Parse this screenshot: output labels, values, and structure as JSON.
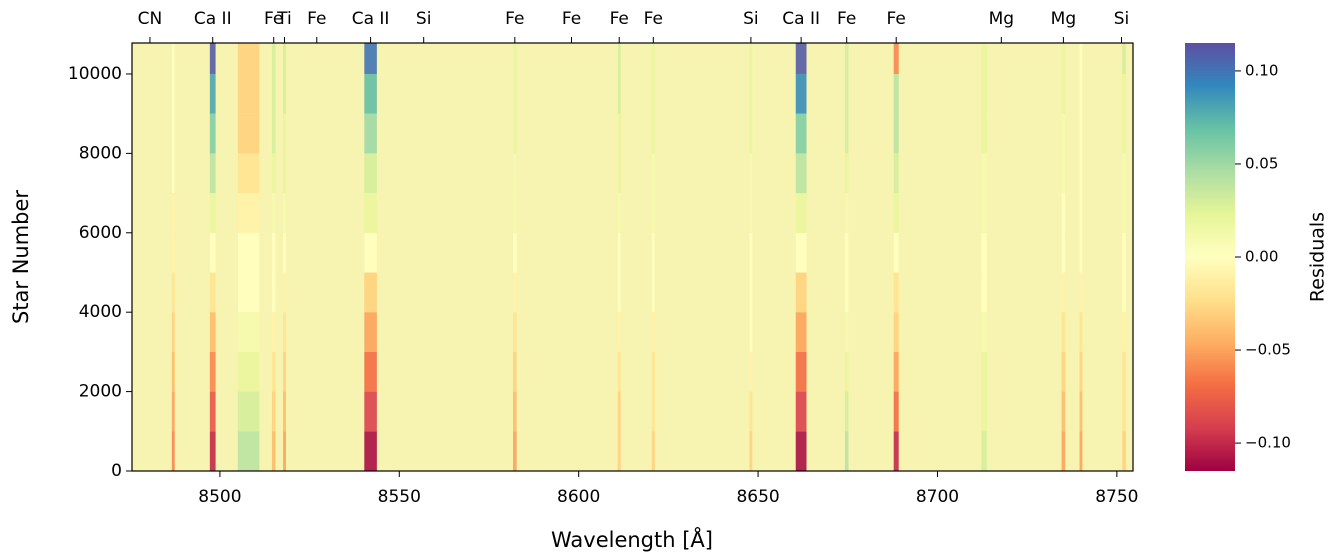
{
  "chart_data": {
    "type": "heatmap",
    "xlabel": "Wavelength [Å]",
    "ylabel": "Star Number",
    "colorbar_label": "Residuals",
    "colormap": "Spectral",
    "xlim": [
      8475.5,
      8754.5
    ],
    "ylim": [
      0,
      10780
    ],
    "xticks": [
      8500,
      8550,
      8600,
      8650,
      8700,
      8750
    ],
    "yticks": [
      0,
      2000,
      4000,
      6000,
      8000,
      10000
    ],
    "clim": [
      -0.115,
      0.115
    ],
    "cticks": [
      {
        "value": 0.1,
        "label": "0.10"
      },
      0.05,
      {
        "value": 0,
        "label": "0.00"
      },
      {
        "value": -0.05,
        "label": "−0.05"
      },
      {
        "value": -0.1,
        "label": "−0.10"
      }
    ],
    "line_labels": [
      {
        "x": 8480.5,
        "label": "CN"
      },
      {
        "x": 8498,
        "label": "Ca II"
      },
      {
        "x": 8515,
        "label": "Fe"
      },
      {
        "x": 8518,
        "label": "Ti"
      },
      {
        "x": 8527,
        "label": "Fe"
      },
      {
        "x": 8542,
        "label": "Ca II"
      },
      {
        "x": 8556.8,
        "label": "Si"
      },
      {
        "x": 8582.2,
        "label": "Fe"
      },
      {
        "x": 8598,
        "label": "Fe"
      },
      {
        "x": 8611.3,
        "label": "Fe"
      },
      {
        "x": 8620.8,
        "label": "Fe"
      },
      {
        "x": 8648,
        "label": "Si"
      },
      {
        "x": 8662,
        "label": "Ca II"
      },
      {
        "x": 8674.7,
        "label": "Fe"
      },
      {
        "x": 8688.5,
        "label": "Fe"
      },
      {
        "x": 8717.8,
        "label": "Mg"
      },
      {
        "x": 8735.1,
        "label": "Mg"
      },
      {
        "x": 8751.3,
        "label": "Si"
      }
    ],
    "y_bins": [
      0,
      1000,
      2000,
      3000,
      4000,
      5000,
      6000,
      7000,
      8000,
      9000,
      10000,
      10780
    ],
    "columns": [
      {
        "x": 8508,
        "width": 6,
        "values": [
          0.04,
          0.03,
          0.02,
          0.01,
          0,
          0,
          -0.01,
          -0.02,
          -0.03,
          -0.03,
          -0.03
        ]
      },
      {
        "x": 8498,
        "width": 1.6,
        "values": [
          -0.1,
          -0.08,
          -0.06,
          -0.04,
          -0.02,
          0,
          0.02,
          0.04,
          0.06,
          0.08,
          0.11
        ]
      },
      {
        "x": 8542,
        "width": 3.5,
        "values": [
          -0.11,
          -0.09,
          -0.07,
          -0.05,
          -0.03,
          0,
          0.02,
          0.03,
          0.05,
          0.07,
          0.1
        ]
      },
      {
        "x": 8662,
        "width": 3,
        "values": [
          -0.11,
          -0.09,
          -0.07,
          -0.05,
          -0.03,
          0,
          0.02,
          0.04,
          0.06,
          0.09,
          0.11
        ]
      },
      {
        "x": 8688.5,
        "width": 1.4,
        "values": [
          -0.1,
          -0.07,
          -0.05,
          -0.03,
          -0.02,
          0,
          0.02,
          0.03,
          0.04,
          0.04,
          -0.06
        ]
      },
      {
        "x": 8515,
        "width": 1,
        "values": [
          -0.04,
          -0.03,
          -0.02,
          -0.01,
          0,
          0,
          0.01,
          0.02,
          0.03,
          0.03,
          0.03
        ]
      },
      {
        "x": 8518,
        "width": 0.8,
        "values": [
          -0.05,
          -0.04,
          -0.03,
          -0.02,
          -0.01,
          0,
          0.01,
          0.02,
          0.02,
          0.03,
          0.03
        ]
      },
      {
        "x": 8487,
        "width": 0.8,
        "values": [
          -0.06,
          -0.05,
          -0.04,
          -0.03,
          -0.02,
          -0.01,
          -0.01,
          0,
          0,
          0,
          0
        ]
      },
      {
        "x": 8582.2,
        "width": 1,
        "values": [
          -0.05,
          -0.04,
          -0.03,
          -0.02,
          -0.01,
          0,
          0.01,
          0.01,
          0.02,
          0.02,
          0.02
        ]
      },
      {
        "x": 8611.3,
        "width": 0.8,
        "values": [
          -0.03,
          -0.03,
          -0.02,
          -0.01,
          0,
          0,
          0.01,
          0.02,
          0.02,
          0.03,
          0.03
        ]
      },
      {
        "x": 8620.8,
        "width": 0.8,
        "values": [
          -0.03,
          -0.02,
          -0.02,
          -0.01,
          0,
          0,
          0.01,
          0.01,
          0.02,
          0.02,
          0.02
        ]
      },
      {
        "x": 8674.7,
        "width": 1,
        "values": [
          0.04,
          0.03,
          0.02,
          0.01,
          0,
          0,
          0.01,
          0.02,
          0.03,
          0.03,
          0.03
        ]
      },
      {
        "x": 8648,
        "width": 0.8,
        "values": [
          -0.03,
          -0.02,
          -0.01,
          0,
          0,
          0,
          0.01,
          0.01,
          0.02,
          0.02,
          0.02
        ]
      },
      {
        "x": 8713,
        "width": 1.5,
        "values": [
          0.03,
          0.02,
          0.02,
          0.01,
          0,
          0,
          0.01,
          0.01,
          0.02,
          0.02,
          0.02
        ]
      },
      {
        "x": 8735.1,
        "width": 1,
        "values": [
          -0.05,
          -0.04,
          -0.03,
          -0.02,
          -0.01,
          0,
          0,
          0.01,
          0.01,
          0.02,
          0.02
        ]
      },
      {
        "x": 8740,
        "width": 0.8,
        "values": [
          -0.05,
          -0.04,
          -0.03,
          -0.02,
          -0.01,
          0,
          0,
          0,
          0,
          0,
          0
        ]
      },
      {
        "x": 8752,
        "width": 1,
        "values": [
          -0.03,
          -0.02,
          -0.02,
          -0.01,
          0,
          0,
          0.01,
          0.01,
          0.02,
          0.02,
          0.03
        ]
      }
    ]
  }
}
